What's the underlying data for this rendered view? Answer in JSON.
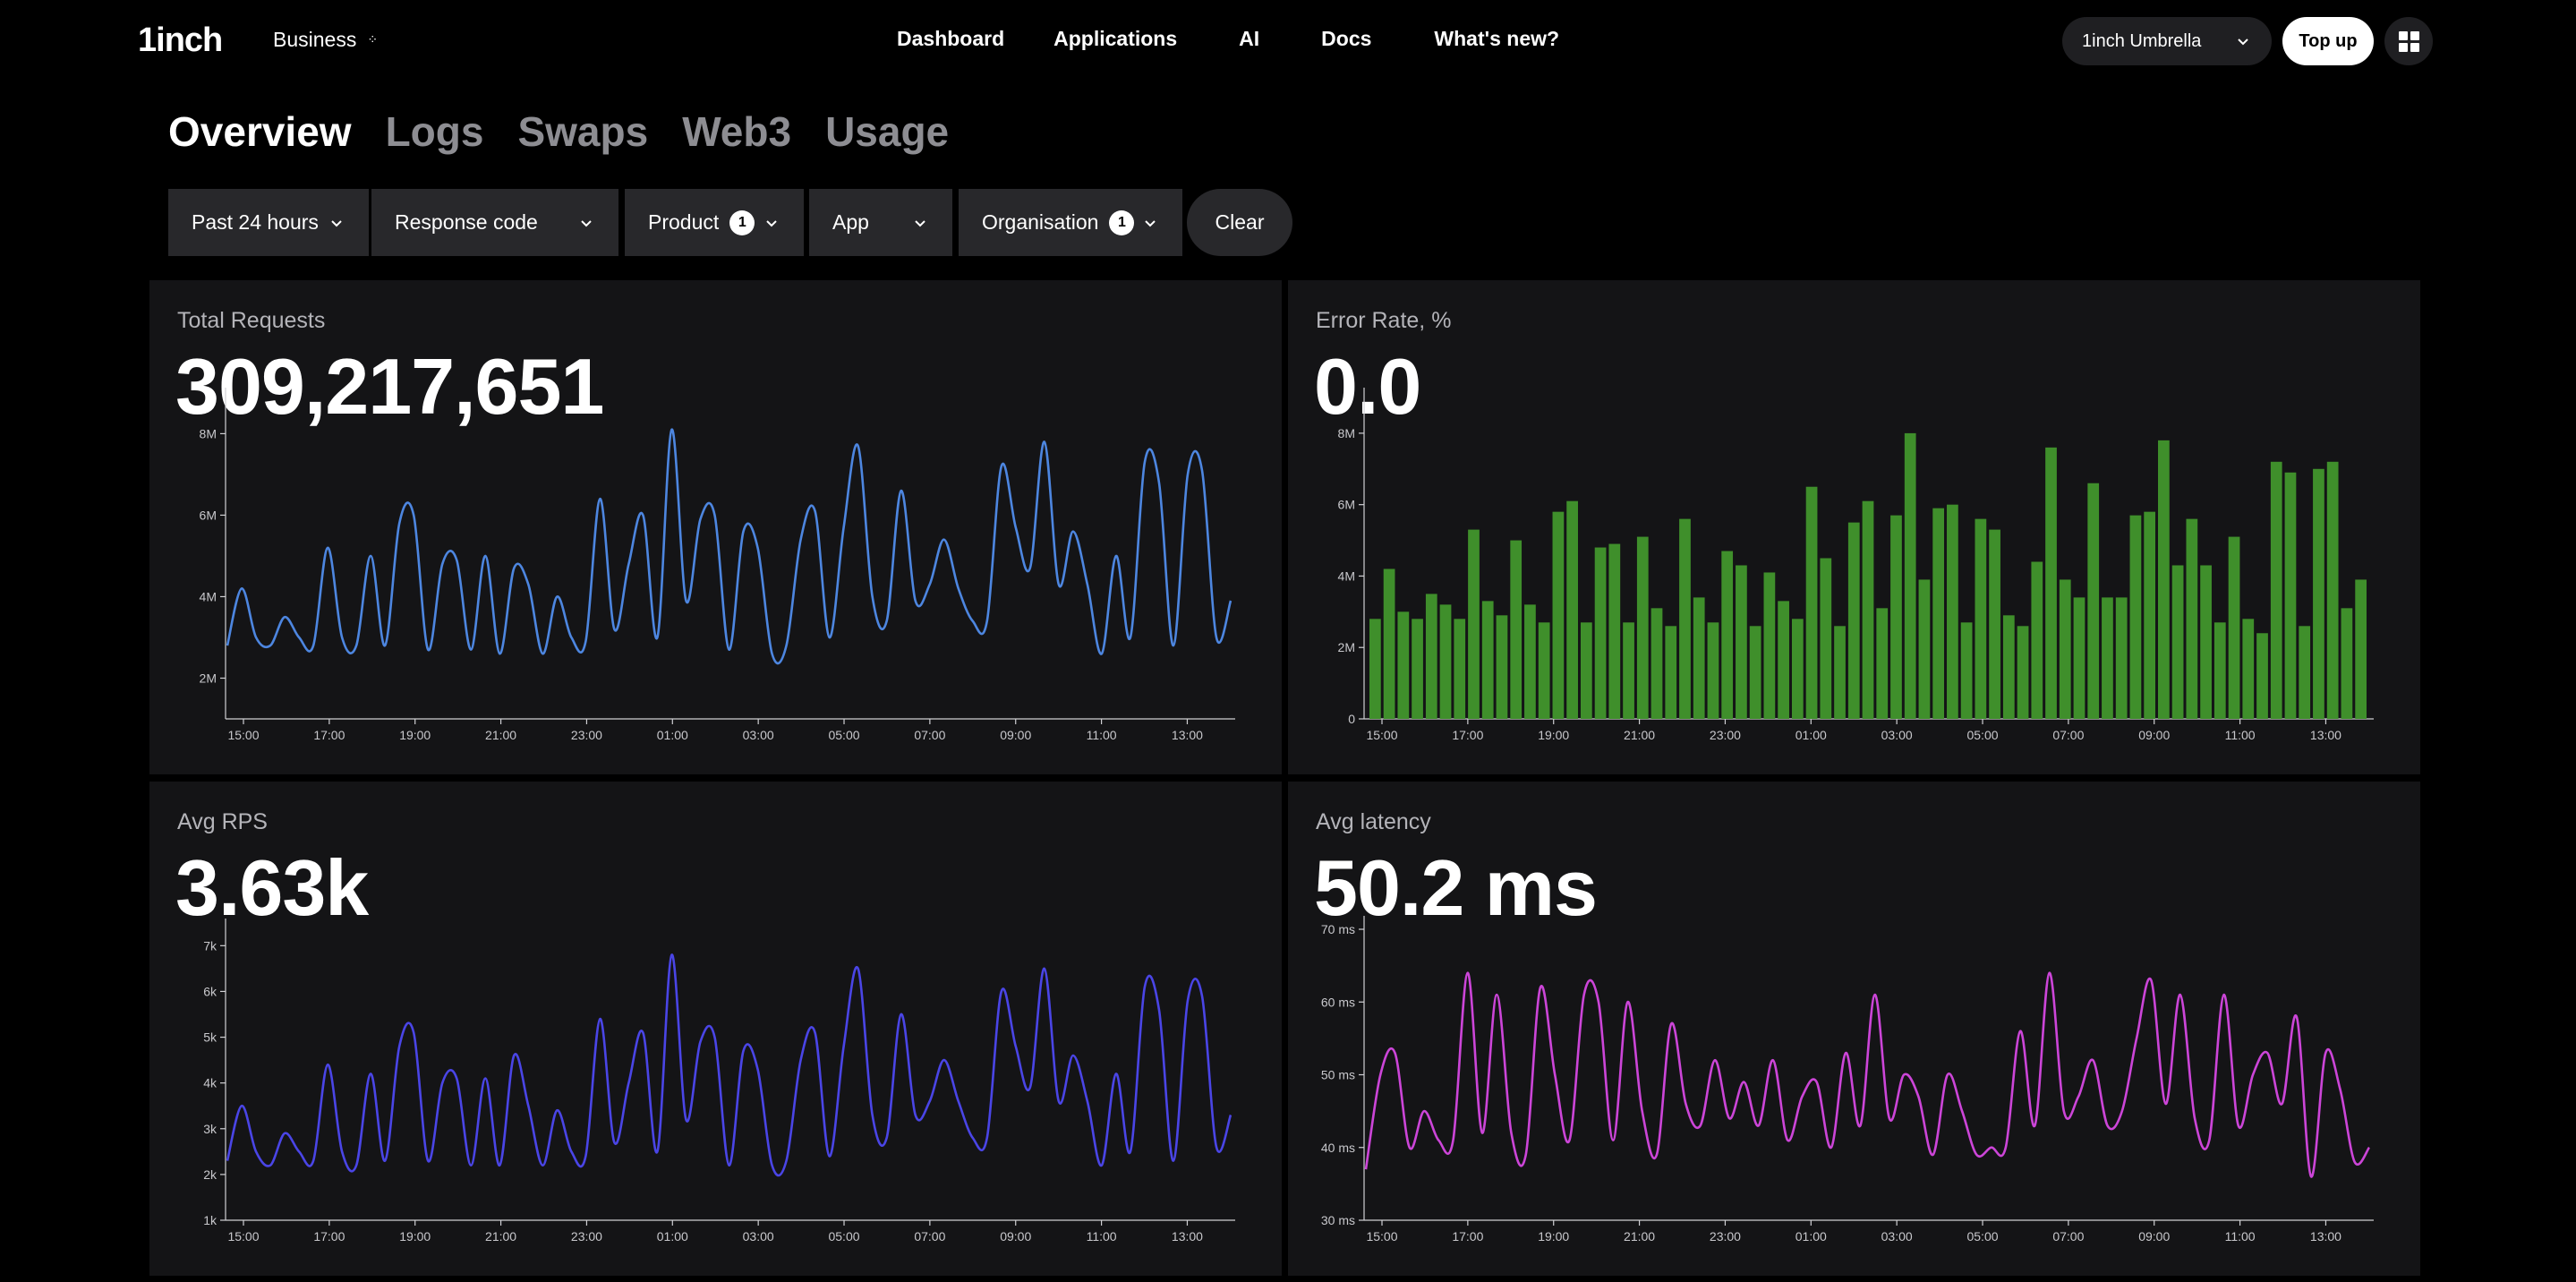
{
  "topbar": {
    "logo": "1inch",
    "workspace": "Business",
    "nav": [
      "Dashboard",
      "Applications",
      "AI",
      "Docs",
      "What's new?"
    ],
    "org_select": "1inch Umbrella",
    "topup": "Top up"
  },
  "tabs": [
    "Overview",
    "Logs",
    "Swaps",
    "Web3",
    "Usage"
  ],
  "active_tab": "Overview",
  "filters": {
    "time": "Past 24 hours",
    "response_code": "Response code",
    "product": "Product",
    "product_count": "1",
    "app": "App",
    "organisation": "Organisation",
    "organisation_count": "1",
    "clear": "Clear"
  },
  "cards": {
    "total_requests": {
      "title": "Total Requests",
      "value": "309,217,651"
    },
    "error_rate": {
      "title": "Error Rate, %",
      "value": "0.0"
    },
    "avg_rps": {
      "title": "Avg RPS",
      "value": "3.63k"
    },
    "avg_latency": {
      "title": "Avg latency",
      "value": "50.2 ms"
    }
  },
  "colors": {
    "requests": "#4d86e0",
    "errors": "#3f8f2b",
    "rps": "#4a45e6",
    "latency": "#cc45d8"
  },
  "chart_data": [
    {
      "type": "line",
      "title": "Total Requests",
      "x_ticks": [
        "15:00",
        "17:00",
        "19:00",
        "21:00",
        "23:00",
        "01:00",
        "03:00",
        "05:00",
        "07:00",
        "09:00",
        "11:00",
        "13:00"
      ],
      "y_ticks": [
        "2M",
        "4M",
        "6M",
        "8M"
      ],
      "ylim": [
        1,
        8.8
      ],
      "series": [
        {
          "values": [
            2.8,
            4.2,
            3.0,
            2.8,
            3.5,
            3.0,
            2.8,
            5.2,
            3.0,
            2.8,
            5.0,
            2.8,
            5.8,
            6.0,
            2.7,
            4.8,
            4.9,
            2.7,
            5.0,
            2.6,
            4.7,
            4.3,
            2.6,
            4.0,
            3.0,
            2.9,
            6.4,
            3.2,
            4.8,
            6.0,
            3.0,
            8.1,
            3.9,
            5.9,
            6.0,
            2.7,
            5.6,
            5.2,
            2.6,
            2.8,
            5.4,
            6.1,
            3.0,
            5.7,
            7.7,
            4.0,
            3.4,
            6.6,
            3.9,
            4.3,
            5.4,
            4.2,
            3.4,
            3.4,
            7.2,
            5.7,
            4.7,
            7.8,
            4.3,
            5.6,
            4.3,
            2.6,
            5.0,
            3.0,
            7.3,
            6.8,
            2.8,
            7.0,
            7.1,
            3.0,
            3.9
          ]
        }
      ]
    },
    {
      "type": "bar",
      "title": "Error Rate, %",
      "x_ticks": [
        "15:00",
        "17:00",
        "19:00",
        "21:00",
        "23:00",
        "01:00",
        "03:00",
        "05:00",
        "07:00",
        "09:00",
        "11:00",
        "13:00"
      ],
      "y_ticks": [
        "0",
        "2M",
        "4M",
        "6M",
        "8M"
      ],
      "ylim": [
        0,
        8.9
      ],
      "series": [
        {
          "values": [
            2.8,
            4.2,
            3.0,
            2.8,
            3.5,
            3.2,
            2.8,
            5.3,
            3.3,
            2.9,
            5.0,
            3.2,
            2.7,
            5.8,
            6.1,
            2.7,
            4.8,
            4.9,
            2.7,
            5.1,
            3.1,
            2.6,
            5.6,
            3.4,
            2.7,
            4.7,
            4.3,
            2.6,
            4.1,
            3.3,
            2.8,
            6.5,
            4.5,
            2.6,
            5.5,
            6.1,
            3.1,
            5.7,
            8.0,
            3.9,
            5.9,
            6.0,
            2.7,
            5.6,
            5.3,
            2.9,
            2.6,
            4.4,
            7.6,
            3.9,
            3.4,
            6.6,
            3.4,
            3.4,
            5.7,
            5.8,
            7.8,
            4.3,
            5.6,
            4.3,
            2.7,
            5.1,
            2.8,
            2.4,
            7.2,
            6.9,
            2.6,
            7.0,
            7.2,
            3.1,
            3.9
          ]
        }
      ]
    },
    {
      "type": "line",
      "title": "Avg RPS",
      "x_ticks": [
        "15:00",
        "17:00",
        "19:00",
        "21:00",
        "23:00",
        "01:00",
        "03:00",
        "05:00",
        "07:00",
        "09:00",
        "11:00",
        "13:00"
      ],
      "y_ticks": [
        "1k",
        "2k",
        "3k",
        "4k",
        "5k",
        "6k",
        "7k"
      ],
      "ylim": [
        1,
        7.3
      ],
      "series": [
        {
          "values": [
            2.3,
            3.5,
            2.5,
            2.2,
            2.9,
            2.5,
            2.3,
            4.4,
            2.5,
            2.2,
            4.2,
            2.3,
            4.8,
            5.1,
            2.3,
            4.0,
            4.1,
            2.2,
            4.1,
            2.2,
            4.6,
            3.5,
            2.2,
            3.4,
            2.5,
            2.4,
            5.4,
            2.7,
            4.0,
            5.1,
            2.5,
            6.8,
            3.2,
            4.9,
            5.0,
            2.2,
            4.7,
            4.3,
            2.2,
            2.3,
            4.5,
            5.1,
            2.4,
            4.8,
            6.5,
            3.3,
            2.8,
            5.5,
            3.3,
            3.6,
            4.5,
            3.6,
            2.8,
            2.8,
            6.0,
            4.8,
            3.9,
            6.5,
            3.6,
            4.6,
            3.6,
            2.2,
            4.2,
            2.5,
            6.1,
            5.6,
            2.3,
            5.8,
            5.9,
            2.6,
            3.3
          ]
        }
      ]
    },
    {
      "type": "line",
      "title": "Avg latency",
      "x_ticks": [
        "15:00",
        "17:00",
        "19:00",
        "21:00",
        "23:00",
        "01:00",
        "03:00",
        "05:00",
        "07:00",
        "09:00",
        "11:00",
        "13:00"
      ],
      "y_ticks": [
        "30 ms",
        "40 ms",
        "50 ms",
        "60 ms",
        "70 ms"
      ],
      "ylim": [
        30,
        70
      ],
      "series": [
        {
          "values": [
            37,
            50,
            53,
            40,
            45,
            41,
            41,
            64,
            42,
            61,
            42,
            39,
            62,
            50,
            41,
            61,
            60,
            41,
            60,
            45,
            39,
            57,
            46,
            43,
            52,
            44,
            49,
            43,
            52,
            41,
            47,
            49,
            40,
            53,
            43,
            61,
            44,
            50,
            47,
            39,
            50,
            45,
            39,
            40,
            40,
            56,
            43,
            64,
            45,
            47,
            52,
            43,
            45,
            55,
            63,
            46,
            61,
            44,
            41,
            61,
            43,
            50,
            53,
            46,
            58,
            36,
            53,
            48,
            38,
            40
          ]
        }
      ]
    }
  ]
}
